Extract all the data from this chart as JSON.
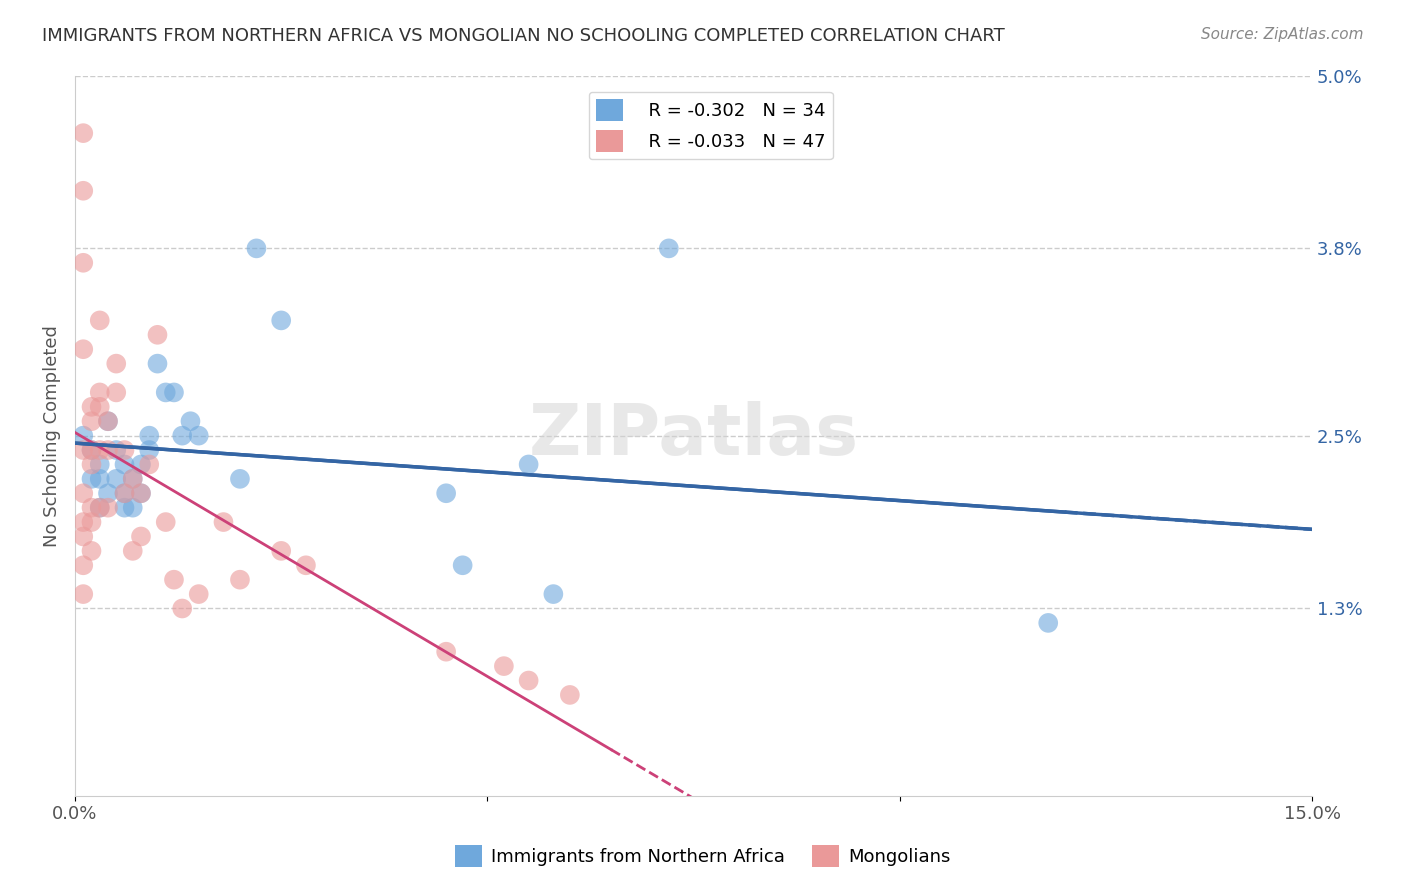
{
  "title": "IMMIGRANTS FROM NORTHERN AFRICA VS MONGOLIAN NO SCHOOLING COMPLETED CORRELATION CHART",
  "source": "Source: ZipAtlas.com",
  "xlabel_bottom": "",
  "ylabel": "No Schooling Completed",
  "xlim": [
    0.0,
    0.15
  ],
  "ylim": [
    0.0,
    0.05
  ],
  "xticks": [
    0.0,
    0.05,
    0.1,
    0.15
  ],
  "xticklabels": [
    "0.0%",
    "",
    "",
    "15.0%"
  ],
  "yticks_right": [
    0.013,
    0.025,
    0.038,
    0.05
  ],
  "ytick_labels_right": [
    "1.3%",
    "2.5%",
    "3.8%",
    "5.0%"
  ],
  "blue_color": "#6fa8dc",
  "pink_color": "#ea9999",
  "blue_line_color": "#3465a4",
  "pink_line_color": "#cc4178",
  "watermark": "ZIPatlas",
  "legend_blue_R": "R = -0.302",
  "legend_blue_N": "N = 34",
  "legend_pink_R": "R = -0.033",
  "legend_pink_N": "N = 47",
  "blue_scatter_x": [
    0.001,
    0.002,
    0.002,
    0.003,
    0.003,
    0.003,
    0.004,
    0.004,
    0.005,
    0.005,
    0.006,
    0.006,
    0.006,
    0.007,
    0.007,
    0.008,
    0.008,
    0.009,
    0.009,
    0.01,
    0.011,
    0.012,
    0.013,
    0.014,
    0.015,
    0.02,
    0.022,
    0.025,
    0.045,
    0.047,
    0.055,
    0.058,
    0.072,
    0.118
  ],
  "blue_scatter_y": [
    0.025,
    0.024,
    0.022,
    0.023,
    0.022,
    0.02,
    0.026,
    0.021,
    0.024,
    0.022,
    0.023,
    0.021,
    0.02,
    0.022,
    0.02,
    0.023,
    0.021,
    0.025,
    0.024,
    0.03,
    0.028,
    0.028,
    0.025,
    0.026,
    0.025,
    0.022,
    0.038,
    0.033,
    0.021,
    0.016,
    0.023,
    0.014,
    0.038,
    0.012
  ],
  "pink_scatter_x": [
    0.001,
    0.001,
    0.001,
    0.001,
    0.001,
    0.001,
    0.001,
    0.001,
    0.001,
    0.001,
    0.002,
    0.002,
    0.002,
    0.002,
    0.002,
    0.002,
    0.002,
    0.003,
    0.003,
    0.003,
    0.003,
    0.003,
    0.004,
    0.004,
    0.004,
    0.005,
    0.005,
    0.006,
    0.006,
    0.007,
    0.007,
    0.008,
    0.008,
    0.009,
    0.01,
    0.011,
    0.012,
    0.013,
    0.015,
    0.018,
    0.02,
    0.025,
    0.028,
    0.045,
    0.052,
    0.055,
    0.06
  ],
  "pink_scatter_y": [
    0.046,
    0.042,
    0.037,
    0.031,
    0.024,
    0.021,
    0.019,
    0.018,
    0.016,
    0.014,
    0.027,
    0.026,
    0.024,
    0.023,
    0.02,
    0.019,
    0.017,
    0.033,
    0.028,
    0.027,
    0.024,
    0.02,
    0.026,
    0.024,
    0.02,
    0.03,
    0.028,
    0.024,
    0.021,
    0.022,
    0.017,
    0.021,
    0.018,
    0.023,
    0.032,
    0.019,
    0.015,
    0.013,
    0.014,
    0.019,
    0.015,
    0.017,
    0.016,
    0.01,
    0.009,
    0.008,
    0.007
  ],
  "background_color": "#ffffff",
  "grid_color": "#cccccc",
  "title_color": "#333333",
  "axis_label_color": "#555555",
  "right_tick_color": "#3465a4"
}
